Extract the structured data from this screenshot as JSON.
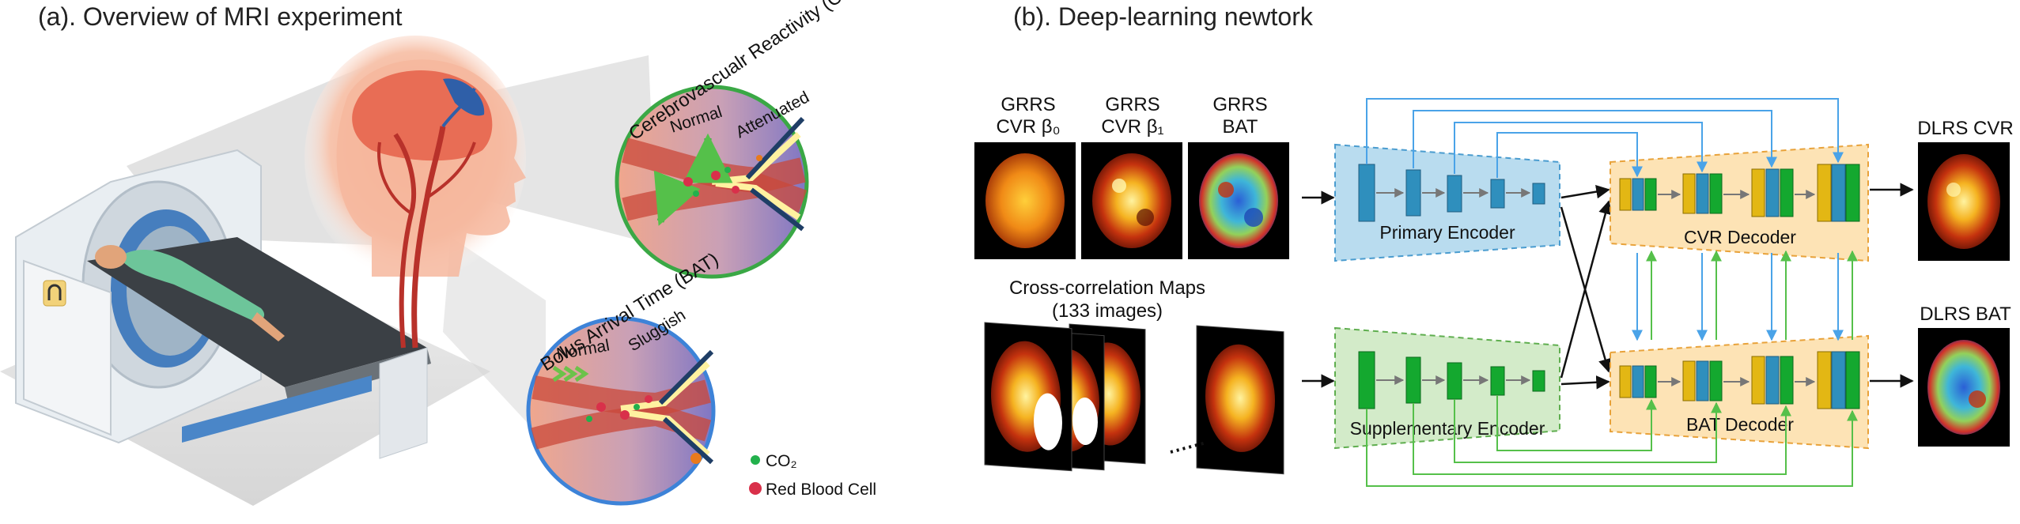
{
  "panel_a": {
    "title": "(a). Overview of MRI experiment",
    "cvr_arc_label": "Cerebrovascualr Reactivity (CVR)",
    "bat_arc_label": "Bolus Arrival Time (BAT)",
    "cvr_normal": "Normal",
    "cvr_attenuated": "Attenuated",
    "bat_normal": "Normal",
    "bat_sluggish": "Sluggish",
    "legend": [
      {
        "label": "CO₂",
        "color": "#22b14c"
      },
      {
        "label": "Red Blood Cell",
        "color": "#d9304a"
      }
    ]
  },
  "panel_b": {
    "title": "(b). Deep-learning newtork",
    "inputs": [
      {
        "line1": "GRRS",
        "line2": "CVR β₀"
      },
      {
        "line1": "GRRS",
        "line2": "CVR β₁"
      },
      {
        "line1": "GRRS",
        "line2": "BAT"
      }
    ],
    "xcorr_line1": "Cross-correlation Maps",
    "xcorr_line2": "(133 images)",
    "primary_encoder": "Primary Encoder",
    "supplementary_encoder": "Supplementary Encoder",
    "cvr_decoder": "CVR Decoder",
    "bat_decoder": "BAT Decoder",
    "out_cvr": "DLRS CVR",
    "out_bat": "DLRS BAT"
  },
  "colors": {
    "primary_fill": "#b9dcef",
    "primary_stroke": "#4a9ccf",
    "supp_fill": "#d3ebc9",
    "supp_stroke": "#5fae4f",
    "decoder_fill": "#fde3b5",
    "decoder_stroke": "#e8a23a",
    "skip_blue": "#4aa3e8",
    "skip_green": "#55c04a",
    "enc_blue_block": "#2f8fbd",
    "enc_green_block": "#14a82f",
    "dec_yellow_block": "#e3b714"
  }
}
